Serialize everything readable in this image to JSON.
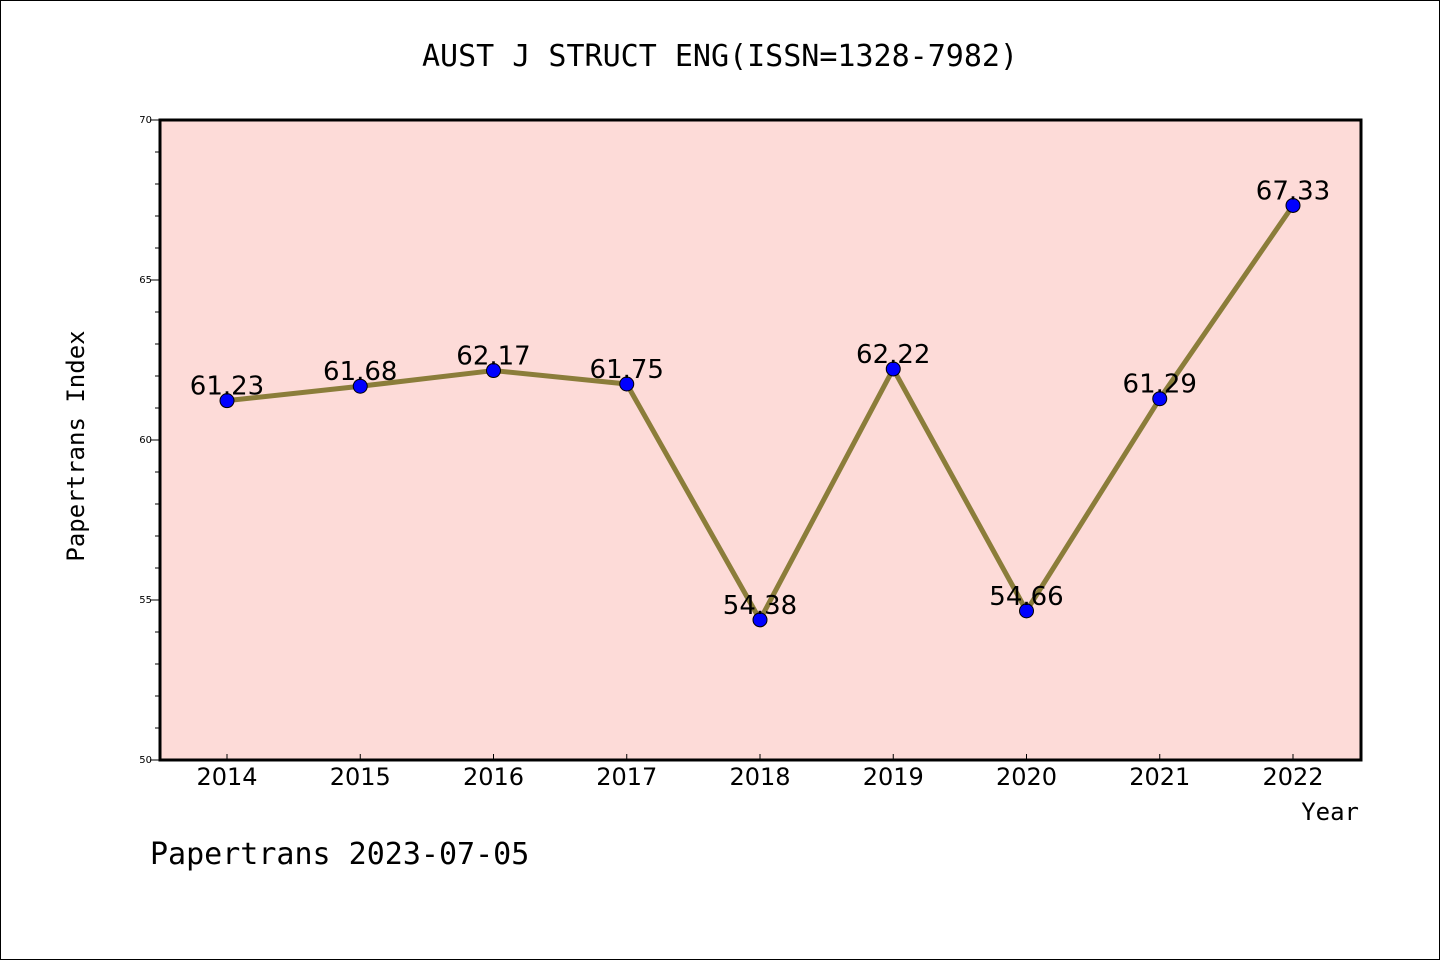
{
  "title": "AUST J STRUCT ENG(ISSN=1328-7982)",
  "footer": "Papertrans 2023-07-05",
  "colors": {
    "plot_background": "#fddbd8",
    "line": "#8b7d3a",
    "marker": "#0000ff"
  },
  "chart_data": {
    "type": "line",
    "title": "AUST J STRUCT ENG(ISSN=1328-7982)",
    "xlabel": "Year",
    "ylabel": "Papertrans Index",
    "categories": [
      "2014",
      "2015",
      "2016",
      "2017",
      "2018",
      "2019",
      "2020",
      "2021",
      "2022"
    ],
    "values": [
      61.23,
      61.68,
      62.17,
      61.75,
      54.38,
      62.22,
      54.66,
      61.29,
      67.33
    ],
    "data_labels": [
      "61.23",
      "61.68",
      "62.17",
      "61.75",
      "54.38",
      "62.22",
      "54.66",
      "61.29",
      "67.33"
    ],
    "ylim": [
      50,
      70
    ],
    "yticks": [
      "50",
      "55",
      "60",
      "65",
      "70"
    ],
    "grid": false,
    "legend": false
  }
}
